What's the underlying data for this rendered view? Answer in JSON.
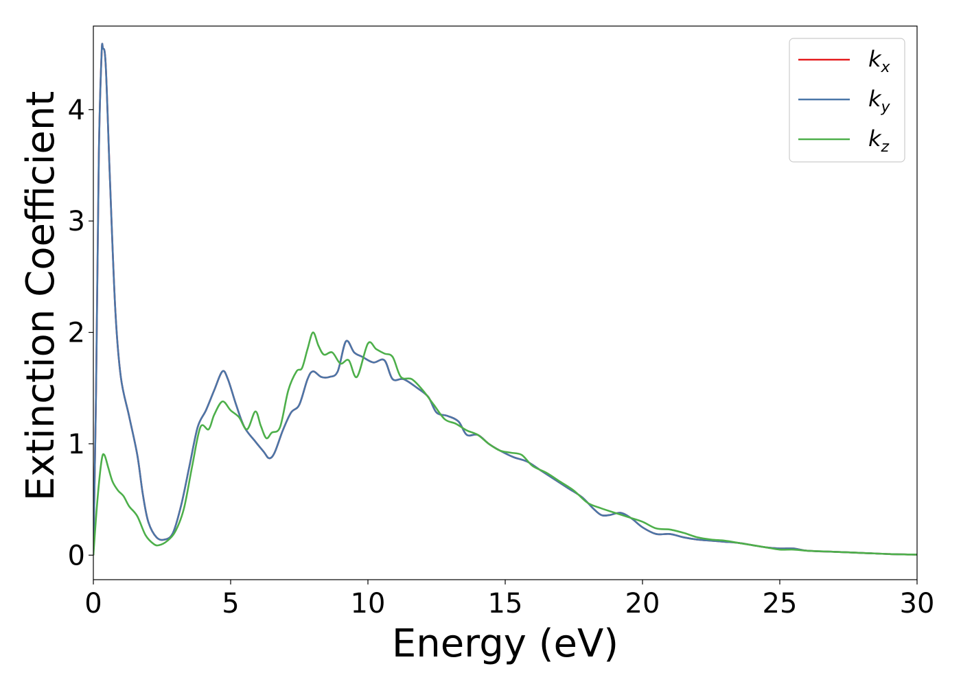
{
  "chart_data": {
    "type": "line",
    "xlabel": "Energy (eV)",
    "ylabel": "Extinction Coefficient",
    "xlim": [
      0,
      30
    ],
    "ylim": [
      -0.22,
      4.75
    ],
    "xticks": [
      0,
      5,
      10,
      15,
      20,
      25,
      30
    ],
    "yticks": [
      0,
      1,
      2,
      3,
      4
    ],
    "xtick_labels": [
      "0",
      "5",
      "10",
      "15",
      "20",
      "25",
      "30"
    ],
    "ytick_labels": [
      "0",
      "1",
      "2",
      "3",
      "4"
    ],
    "grid": false,
    "legend_position": "top-right",
    "series": [
      {
        "name": "kx",
        "label_base": "k",
        "label_sub": "x",
        "color": "#e41a1c",
        "points": [
          [
            0,
            0
          ],
          [
            0.1,
            1.5
          ],
          [
            0.2,
            3.6
          ],
          [
            0.3,
            4.5
          ],
          [
            0.35,
            4.55
          ],
          [
            0.45,
            4.4
          ],
          [
            0.6,
            3.4
          ],
          [
            0.8,
            2.2
          ],
          [
            1.0,
            1.6
          ],
          [
            1.3,
            1.25
          ],
          [
            1.6,
            0.9
          ],
          [
            1.8,
            0.55
          ],
          [
            2.0,
            0.3
          ],
          [
            2.3,
            0.16
          ],
          [
            2.6,
            0.14
          ],
          [
            2.9,
            0.2
          ],
          [
            3.2,
            0.45
          ],
          [
            3.5,
            0.8
          ],
          [
            3.8,
            1.15
          ],
          [
            4.1,
            1.3
          ],
          [
            4.4,
            1.48
          ],
          [
            4.7,
            1.65
          ],
          [
            4.9,
            1.58
          ],
          [
            5.2,
            1.35
          ],
          [
            5.5,
            1.15
          ],
          [
            5.9,
            1.02
          ],
          [
            6.2,
            0.93
          ],
          [
            6.4,
            0.87
          ],
          [
            6.6,
            0.92
          ],
          [
            6.9,
            1.12
          ],
          [
            7.2,
            1.28
          ],
          [
            7.5,
            1.35
          ],
          [
            7.8,
            1.58
          ],
          [
            8.0,
            1.65
          ],
          [
            8.3,
            1.6
          ],
          [
            8.6,
            1.6
          ],
          [
            8.9,
            1.65
          ],
          [
            9.2,
            1.92
          ],
          [
            9.5,
            1.82
          ],
          [
            9.8,
            1.78
          ],
          [
            10.2,
            1.73
          ],
          [
            10.6,
            1.75
          ],
          [
            10.9,
            1.58
          ],
          [
            11.3,
            1.58
          ],
          [
            11.8,
            1.5
          ],
          [
            12.2,
            1.42
          ],
          [
            12.5,
            1.28
          ],
          [
            12.9,
            1.25
          ],
          [
            13.3,
            1.2
          ],
          [
            13.6,
            1.08
          ],
          [
            14.0,
            1.08
          ],
          [
            14.4,
            1.0
          ],
          [
            14.8,
            0.94
          ],
          [
            15.3,
            0.88
          ],
          [
            15.8,
            0.84
          ],
          [
            16.3,
            0.76
          ],
          [
            16.8,
            0.68
          ],
          [
            17.3,
            0.6
          ],
          [
            17.8,
            0.52
          ],
          [
            18.2,
            0.42
          ],
          [
            18.5,
            0.36
          ],
          [
            18.8,
            0.36
          ],
          [
            19.2,
            0.38
          ],
          [
            19.6,
            0.33
          ],
          [
            20.0,
            0.25
          ],
          [
            20.5,
            0.19
          ],
          [
            21.0,
            0.19
          ],
          [
            21.5,
            0.16
          ],
          [
            22.0,
            0.14
          ],
          [
            22.5,
            0.13
          ],
          [
            23.0,
            0.12
          ],
          [
            23.5,
            0.11
          ],
          [
            24.0,
            0.09
          ],
          [
            24.5,
            0.07
          ],
          [
            25.0,
            0.06
          ],
          [
            25.5,
            0.06
          ],
          [
            26.0,
            0.04
          ],
          [
            27.0,
            0.03
          ],
          [
            28.0,
            0.02
          ],
          [
            29.0,
            0.01
          ],
          [
            30.0,
            0.005
          ]
        ]
      },
      {
        "name": "ky",
        "label_base": "k",
        "label_sub": "y",
        "color": "#4a76a8",
        "points": [
          [
            0,
            0
          ],
          [
            0.1,
            1.5
          ],
          [
            0.2,
            3.6
          ],
          [
            0.3,
            4.5
          ],
          [
            0.35,
            4.55
          ],
          [
            0.45,
            4.4
          ],
          [
            0.6,
            3.4
          ],
          [
            0.8,
            2.2
          ],
          [
            1.0,
            1.6
          ],
          [
            1.3,
            1.25
          ],
          [
            1.6,
            0.9
          ],
          [
            1.8,
            0.55
          ],
          [
            2.0,
            0.3
          ],
          [
            2.3,
            0.16
          ],
          [
            2.6,
            0.14
          ],
          [
            2.9,
            0.2
          ],
          [
            3.2,
            0.45
          ],
          [
            3.5,
            0.8
          ],
          [
            3.8,
            1.15
          ],
          [
            4.1,
            1.3
          ],
          [
            4.4,
            1.48
          ],
          [
            4.7,
            1.65
          ],
          [
            4.9,
            1.58
          ],
          [
            5.2,
            1.35
          ],
          [
            5.5,
            1.15
          ],
          [
            5.9,
            1.02
          ],
          [
            6.2,
            0.93
          ],
          [
            6.4,
            0.87
          ],
          [
            6.6,
            0.92
          ],
          [
            6.9,
            1.12
          ],
          [
            7.2,
            1.28
          ],
          [
            7.5,
            1.35
          ],
          [
            7.8,
            1.58
          ],
          [
            8.0,
            1.65
          ],
          [
            8.3,
            1.6
          ],
          [
            8.6,
            1.6
          ],
          [
            8.9,
            1.65
          ],
          [
            9.2,
            1.92
          ],
          [
            9.5,
            1.82
          ],
          [
            9.8,
            1.78
          ],
          [
            10.2,
            1.73
          ],
          [
            10.6,
            1.75
          ],
          [
            10.9,
            1.58
          ],
          [
            11.3,
            1.58
          ],
          [
            11.8,
            1.5
          ],
          [
            12.2,
            1.42
          ],
          [
            12.5,
            1.28
          ],
          [
            12.9,
            1.25
          ],
          [
            13.3,
            1.2
          ],
          [
            13.6,
            1.08
          ],
          [
            14.0,
            1.08
          ],
          [
            14.4,
            1.0
          ],
          [
            14.8,
            0.94
          ],
          [
            15.3,
            0.88
          ],
          [
            15.8,
            0.84
          ],
          [
            16.3,
            0.76
          ],
          [
            16.8,
            0.68
          ],
          [
            17.3,
            0.6
          ],
          [
            17.8,
            0.52
          ],
          [
            18.2,
            0.42
          ],
          [
            18.5,
            0.36
          ],
          [
            18.8,
            0.36
          ],
          [
            19.2,
            0.38
          ],
          [
            19.6,
            0.33
          ],
          [
            20.0,
            0.25
          ],
          [
            20.5,
            0.19
          ],
          [
            21.0,
            0.19
          ],
          [
            21.5,
            0.16
          ],
          [
            22.0,
            0.14
          ],
          [
            22.5,
            0.13
          ],
          [
            23.0,
            0.12
          ],
          [
            23.5,
            0.11
          ],
          [
            24.0,
            0.09
          ],
          [
            24.5,
            0.07
          ],
          [
            25.0,
            0.06
          ],
          [
            25.5,
            0.06
          ],
          [
            26.0,
            0.04
          ],
          [
            27.0,
            0.03
          ],
          [
            28.0,
            0.02
          ],
          [
            29.0,
            0.01
          ],
          [
            30.0,
            0.005
          ]
        ]
      },
      {
        "name": "kz",
        "label_base": "k",
        "label_sub": "z",
        "color": "#4daf4a",
        "points": [
          [
            0,
            0
          ],
          [
            0.15,
            0.5
          ],
          [
            0.3,
            0.85
          ],
          [
            0.4,
            0.9
          ],
          [
            0.55,
            0.78
          ],
          [
            0.7,
            0.66
          ],
          [
            0.9,
            0.58
          ],
          [
            1.1,
            0.53
          ],
          [
            1.3,
            0.44
          ],
          [
            1.6,
            0.35
          ],
          [
            1.9,
            0.18
          ],
          [
            2.2,
            0.1
          ],
          [
            2.4,
            0.09
          ],
          [
            2.7,
            0.13
          ],
          [
            3.0,
            0.22
          ],
          [
            3.3,
            0.42
          ],
          [
            3.6,
            0.8
          ],
          [
            3.9,
            1.15
          ],
          [
            4.2,
            1.13
          ],
          [
            4.4,
            1.26
          ],
          [
            4.7,
            1.38
          ],
          [
            5.0,
            1.3
          ],
          [
            5.3,
            1.24
          ],
          [
            5.6,
            1.13
          ],
          [
            5.9,
            1.29
          ],
          [
            6.1,
            1.16
          ],
          [
            6.3,
            1.05
          ],
          [
            6.5,
            1.1
          ],
          [
            6.8,
            1.15
          ],
          [
            7.1,
            1.48
          ],
          [
            7.4,
            1.65
          ],
          [
            7.6,
            1.68
          ],
          [
            7.8,
            1.85
          ],
          [
            8.0,
            2.0
          ],
          [
            8.2,
            1.88
          ],
          [
            8.4,
            1.8
          ],
          [
            8.7,
            1.82
          ],
          [
            9.0,
            1.72
          ],
          [
            9.3,
            1.75
          ],
          [
            9.6,
            1.6
          ],
          [
            10.0,
            1.9
          ],
          [
            10.3,
            1.85
          ],
          [
            10.6,
            1.81
          ],
          [
            10.9,
            1.78
          ],
          [
            11.2,
            1.6
          ],
          [
            11.6,
            1.58
          ],
          [
            12.0,
            1.48
          ],
          [
            12.4,
            1.35
          ],
          [
            12.8,
            1.22
          ],
          [
            13.2,
            1.18
          ],
          [
            13.6,
            1.12
          ],
          [
            14.0,
            1.08
          ],
          [
            14.4,
            1.0
          ],
          [
            14.8,
            0.94
          ],
          [
            15.2,
            0.92
          ],
          [
            15.6,
            0.9
          ],
          [
            16.0,
            0.8
          ],
          [
            16.5,
            0.74
          ],
          [
            17.0,
            0.66
          ],
          [
            17.5,
            0.58
          ],
          [
            18.0,
            0.47
          ],
          [
            18.5,
            0.42
          ],
          [
            19.0,
            0.38
          ],
          [
            19.5,
            0.34
          ],
          [
            20.0,
            0.3
          ],
          [
            20.5,
            0.24
          ],
          [
            21.0,
            0.23
          ],
          [
            21.5,
            0.2
          ],
          [
            22.0,
            0.16
          ],
          [
            22.5,
            0.14
          ],
          [
            23.0,
            0.13
          ],
          [
            23.5,
            0.11
          ],
          [
            24.0,
            0.09
          ],
          [
            24.5,
            0.07
          ],
          [
            25.0,
            0.05
          ],
          [
            25.5,
            0.05
          ],
          [
            26.0,
            0.04
          ],
          [
            27.0,
            0.03
          ],
          [
            28.0,
            0.02
          ],
          [
            29.0,
            0.01
          ],
          [
            30.0,
            0.005
          ]
        ]
      }
    ]
  }
}
